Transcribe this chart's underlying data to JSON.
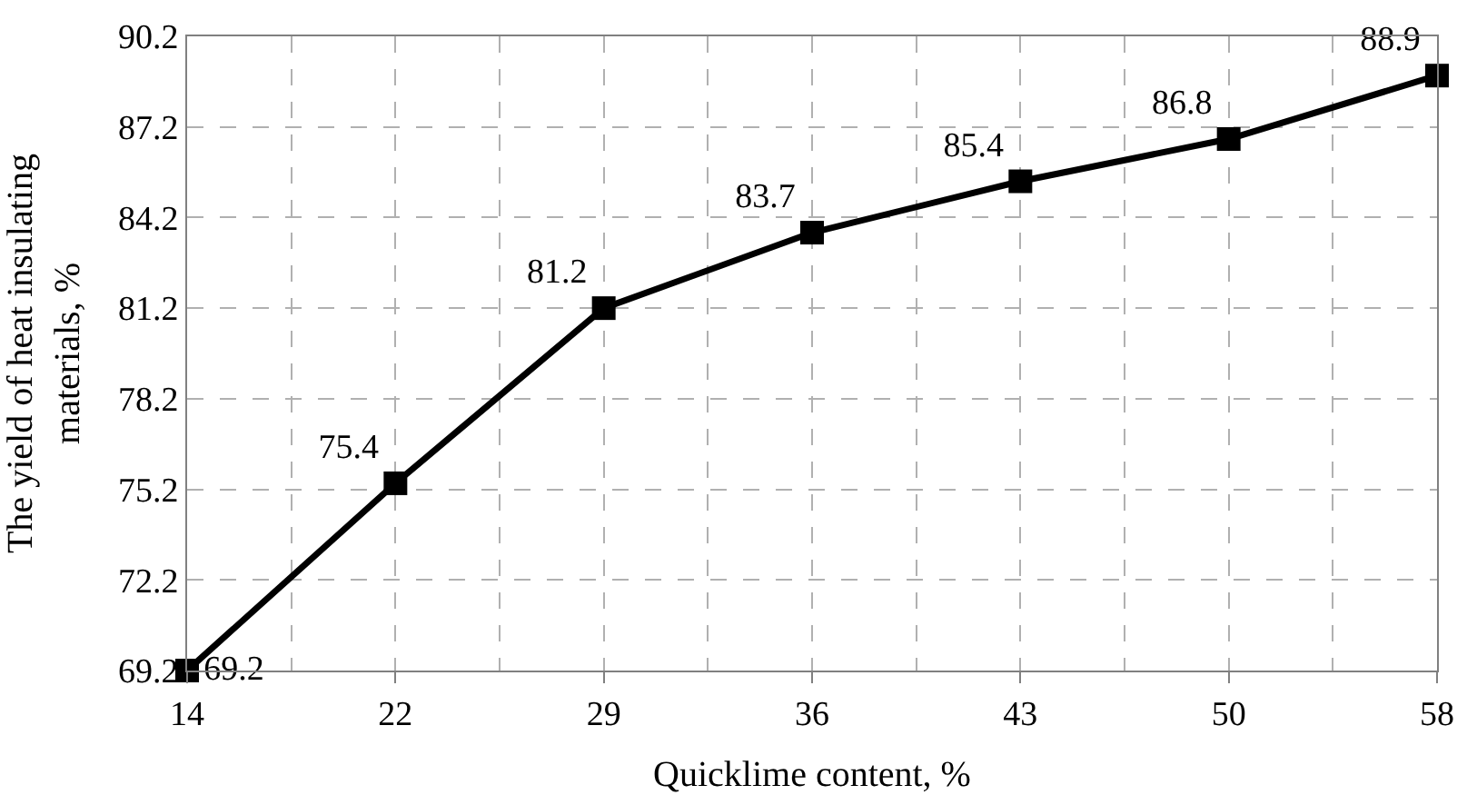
{
  "chart_data": {
    "type": "line",
    "xlabel": "Quicklime content, %",
    "ylabel": "The yield of heat insulating materials, %",
    "categories": [
      "14",
      "22",
      "29",
      "36",
      "43",
      "50",
      "58"
    ],
    "series": [
      {
        "color": "#000000",
        "values": [
          69.2,
          75.4,
          81.2,
          83.7,
          85.4,
          86.8,
          88.9
        ]
      }
    ],
    "ylim": [
      69.2,
      90.2
    ],
    "yticks": [
      69.2,
      72.2,
      75.2,
      78.2,
      81.2,
      84.2,
      87.2,
      90.2
    ],
    "grid": true,
    "marker": "square",
    "line_style": "solid",
    "data_labels": true,
    "legend": false
  }
}
